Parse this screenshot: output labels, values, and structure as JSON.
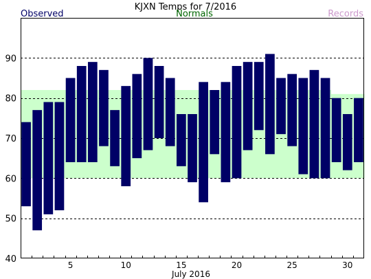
{
  "chart_data": {
    "type": "bar",
    "title": "KJXN Temps for 7/2016",
    "legend": {
      "observed": "Observed",
      "normals": "Normals",
      "records": "Records",
      "placement": "top"
    },
    "xlabel": "July 2016",
    "xlim": [
      0.5,
      31.5
    ],
    "ylim": [
      40,
      100
    ],
    "yticks": [
      40,
      50,
      60,
      70,
      80,
      90
    ],
    "xticks": [
      5,
      10,
      15,
      20,
      25,
      30
    ],
    "gridlines_y": [
      50,
      60,
      70,
      80,
      90
    ],
    "days": [
      1,
      2,
      3,
      4,
      5,
      6,
      7,
      8,
      9,
      10,
      11,
      12,
      13,
      14,
      15,
      16,
      17,
      18,
      19,
      20,
      21,
      22,
      23,
      24,
      25,
      26,
      27,
      28,
      29,
      30,
      31
    ],
    "series": [
      {
        "name": "Observed",
        "kind": "range",
        "high": [
          74,
          77,
          79,
          79,
          85,
          88,
          89,
          87,
          77,
          83,
          86,
          90,
          88,
          85,
          76,
          76,
          84,
          82,
          84,
          88,
          89,
          89,
          91,
          85,
          86,
          85,
          87,
          85,
          80,
          76,
          80
        ],
        "low": [
          53,
          47,
          51,
          52,
          64,
          64,
          64,
          68,
          63,
          58,
          65,
          67,
          70,
          68,
          63,
          59,
          54,
          66,
          59,
          60,
          67,
          72,
          66,
          71,
          68,
          61,
          60,
          60,
          64,
          62,
          64
        ]
      },
      {
        "name": "Normals",
        "kind": "band",
        "high": [
          82,
          82,
          82,
          82,
          82,
          82,
          82,
          82,
          82,
          82,
          82,
          82,
          82,
          82,
          82,
          82,
          82,
          82,
          82,
          82,
          82,
          82,
          82,
          82,
          82,
          82,
          82,
          82,
          81,
          81,
          81
        ],
        "low": [
          60,
          60,
          60,
          60,
          60,
          60,
          60,
          60,
          60,
          60,
          60,
          60,
          60,
          60,
          60,
          60,
          60,
          60,
          60,
          60,
          60,
          60,
          60,
          60,
          60,
          60,
          60,
          60,
          60,
          60,
          60
        ]
      }
    ],
    "colors": {
      "observed": "#000066",
      "normals_band": "#ccffcc",
      "normals_text": "#006600",
      "records_text": "#cc99cc",
      "title_text": "#000000",
      "grid": "#000000"
    },
    "grid": true
  }
}
